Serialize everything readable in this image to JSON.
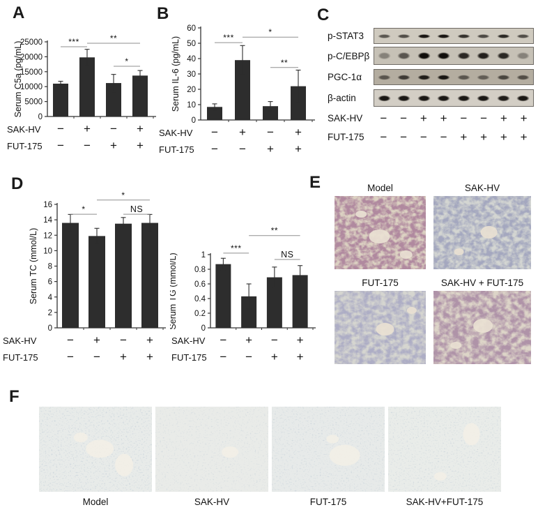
{
  "panel_labels": {
    "a": "A",
    "b": "B",
    "c": "C",
    "d": "D",
    "e": "E",
    "f": "F"
  },
  "colors": {
    "bar": "#2d2d2d",
    "axis": "#333333",
    "sig_line": "#8f8f8f",
    "band": "#14110e",
    "text": "#111111"
  },
  "chart_data": [
    {
      "id": "c5a",
      "panel": "A",
      "type": "bar",
      "title": "",
      "xlabel": "",
      "ylabel": "Serum C5a (pg/mL)",
      "ylim": [
        0,
        25000
      ],
      "ytick_step": 5000,
      "grid": false,
      "categories": [
        "Model",
        "SAK-HV",
        "FUT-175",
        "SAK-HV+FUT-175"
      ],
      "values": [
        11000,
        19800,
        11200,
        13700
      ],
      "errors": [
        800,
        2700,
        2900,
        1700
      ],
      "significance": [
        {
          "from": 0,
          "to": 1,
          "label": "***",
          "level": 0.065
        },
        {
          "from": 1,
          "to": 3,
          "label": "**",
          "level": 0.019
        },
        {
          "from": 2,
          "to": 3,
          "label": "*",
          "level": 0.327
        }
      ],
      "condition_rows": [
        {
          "label": "SAK-HV",
          "signs": [
            "−",
            "+",
            "−",
            "+"
          ]
        },
        {
          "label": "FUT-175",
          "signs": [
            "−",
            "−",
            "+",
            "+"
          ]
        }
      ]
    },
    {
      "id": "il6",
      "panel": "B",
      "type": "bar",
      "title": "",
      "xlabel": "",
      "ylabel": "Serum IL-6 (pg/mL)",
      "ylim": [
        0,
        60
      ],
      "ytick_step": 10,
      "grid": false,
      "categories": [
        "Model",
        "SAK-HV",
        "FUT-175",
        "SAK-HV+FUT-175"
      ],
      "values": [
        8.5,
        39,
        9,
        22
      ],
      "errors": [
        2,
        9.5,
        3,
        10.5
      ],
      "significance": [
        {
          "from": 0,
          "to": 1,
          "label": "***",
          "level": 0.16
        },
        {
          "from": 1,
          "to": 3,
          "label": "*",
          "level": 0.1
        },
        {
          "from": 2,
          "to": 3,
          "label": "**",
          "level": 0.43
        }
      ],
      "condition_rows": [
        {
          "label": "SAK-HV",
          "signs": [
            "−",
            "+",
            "−",
            "+"
          ]
        },
        {
          "label": "FUT-175",
          "signs": [
            "−",
            "−",
            "+",
            "+"
          ]
        }
      ]
    },
    {
      "id": "tc",
      "panel": "D",
      "type": "bar",
      "title": "",
      "xlabel": "",
      "ylabel": "Serum TC (mmol/L)",
      "ylim": [
        0,
        16
      ],
      "ytick_step": 2,
      "grid": false,
      "categories": [
        "Model",
        "SAK-HV",
        "FUT-175",
        "SAK-HV+FUT-175"
      ],
      "values": [
        13.6,
        11.9,
        13.5,
        13.6
      ],
      "errors": [
        1.1,
        1.0,
        0.8,
        1.1
      ],
      "significance": [
        {
          "from": 0,
          "to": 1,
          "label": "*",
          "level": 0.08
        },
        {
          "from": 1,
          "to": 3,
          "label": "*",
          "level": -0.035
        },
        {
          "from": 2,
          "to": 3,
          "label": "NS",
          "level": 0.08
        }
      ],
      "condition_rows": [
        {
          "label": "SAK-HV",
          "signs": [
            "−",
            "+",
            "−",
            "+"
          ]
        },
        {
          "label": "FUT-175",
          "signs": [
            "−",
            "−",
            "+",
            "+"
          ]
        }
      ]
    },
    {
      "id": "tg",
      "panel": "D",
      "type": "bar",
      "title": "",
      "xlabel": "",
      "ylabel": "Serum TG (mmol/L)",
      "ylim": [
        0,
        1
      ],
      "ytick_step": 0.2,
      "grid": false,
      "categories": [
        "Model",
        "SAK-HV",
        "FUT-175",
        "SAK-HV+FUT-175"
      ],
      "values": [
        0.87,
        0.43,
        0.69,
        0.72
      ],
      "errors": [
        0.08,
        0.17,
        0.14,
        0.13
      ],
      "significance": [
        {
          "from": 0,
          "to": 1,
          "label": "***",
          "level": -0.02
        },
        {
          "from": 1,
          "to": 3,
          "label": "**",
          "level": -0.26
        },
        {
          "from": 2,
          "to": 3,
          "label": "NS",
          "level": 0.067
        }
      ],
      "condition_rows": [
        {
          "label": "SAK-HV",
          "signs": [
            "−",
            "+",
            "−",
            "+"
          ]
        },
        {
          "label": "FUT-175",
          "signs": [
            "−",
            "−",
            "+",
            "+"
          ]
        }
      ]
    }
  ],
  "western_blot": {
    "rows": [
      {
        "label": "p-STAT3",
        "band_height": 8,
        "strip_height": 21,
        "bg": "#cfcabf",
        "intensities": [
          0.6,
          0.65,
          0.95,
          0.95,
          0.8,
          0.68,
          0.85,
          0.65
        ]
      },
      {
        "label": "p-C/EBPβ",
        "band_height": 14,
        "strip_height": 24,
        "bg": "#c6c1b6",
        "intensities": [
          0.35,
          0.6,
          1.0,
          1.0,
          0.85,
          0.9,
          0.85,
          0.35
        ]
      },
      {
        "label": "PGC-1α",
        "band_height": 10,
        "strip_height": 21,
        "bg": "#b4ada0",
        "intensities": [
          0.55,
          0.72,
          0.9,
          0.95,
          0.55,
          0.5,
          0.65,
          0.6
        ]
      },
      {
        "label": "β-actin",
        "band_height": 12,
        "strip_height": 23,
        "bg": "#d3cec5",
        "intensities": [
          0.95,
          0.95,
          0.95,
          0.95,
          0.95,
          0.95,
          0.92,
          0.95
        ]
      }
    ],
    "condition_rows": [
      {
        "label": "SAK-HV",
        "signs": [
          "−",
          "−",
          "+",
          "+",
          "−",
          "−",
          "+",
          "+"
        ]
      },
      {
        "label": "FUT-175",
        "signs": [
          "−",
          "−",
          "−",
          "−",
          "+",
          "+",
          "+",
          "+"
        ]
      }
    ]
  },
  "panel_e": {
    "images": [
      {
        "title": "Model",
        "tissue": "#6f4058",
        "bg": "#dcd2c2",
        "seed": 7,
        "freq": "0.13 0.15",
        "alpha": [
          2.8,
          -0.8
        ]
      },
      {
        "title": "SAK-HV",
        "tissue": "#5e6384",
        "bg": "#d4d6d2",
        "seed": 13,
        "freq": "0.13 0.15",
        "alpha": [
          2.5,
          -0.72
        ]
      },
      {
        "title": "FUT-175",
        "tissue": "#6a6a8e",
        "bg": "#d6d6d0",
        "seed": 23,
        "freq": "0.12 0.14",
        "alpha": [
          2.4,
          -0.7
        ]
      },
      {
        "title": "SAK-HV + FUT-175",
        "tissue": "#6d4a64",
        "bg": "#ddd5c8",
        "seed": 31,
        "freq": "0.11 0.13",
        "alpha": [
          2.6,
          -0.75
        ]
      }
    ]
  },
  "panel_f": {
    "images": [
      {
        "label": "Model",
        "tissue": "#7f94a9",
        "bg": "#e8ebe9",
        "seed": 5,
        "freq": "0.45 0.5",
        "alpha": [
          2.2,
          -1.25
        ],
        "specks": true
      },
      {
        "label": "SAK-HV",
        "tissue": "#8398ab",
        "bg": "#e9ebe8",
        "seed": 17,
        "freq": "0.45 0.5",
        "alpha": [
          2.0,
          -1.2
        ],
        "specks": false
      },
      {
        "label": "FUT-175",
        "tissue": "#8095a8",
        "bg": "#e7eae9",
        "seed": 27,
        "freq": "0.45 0.5",
        "alpha": [
          2.1,
          -1.22
        ],
        "specks": false
      },
      {
        "label": "SAK-HV+FUT-175",
        "tissue": "#8296a9",
        "bg": "#e9ece9",
        "seed": 37,
        "freq": "0.45 0.5",
        "alpha": [
          2.1,
          -1.22
        ],
        "specks": true
      }
    ]
  }
}
